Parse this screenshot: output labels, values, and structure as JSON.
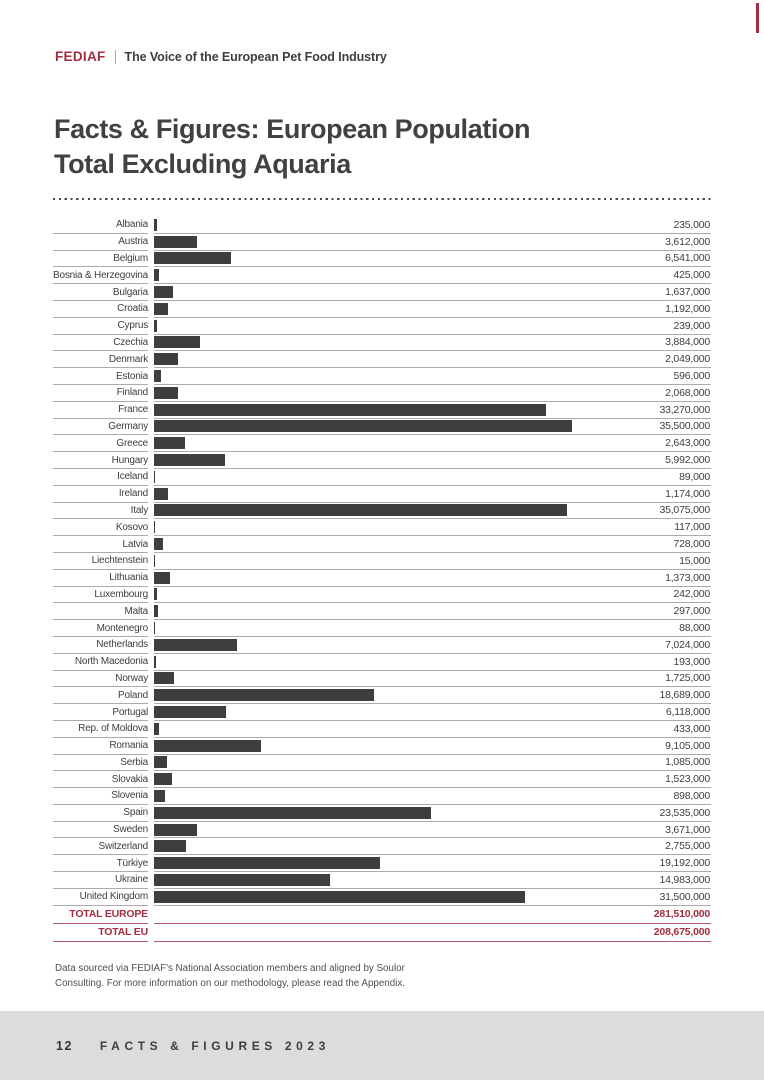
{
  "header": {
    "brand": "FEDIAF",
    "tagline": "The Voice of the European Pet Food Industry"
  },
  "title": {
    "line1": "Facts & Figures: European Population",
    "line2": "Total Excluding Aquaria"
  },
  "chart_data": {
    "type": "bar",
    "orientation": "horizontal",
    "title": "Facts & Figures: European Population Total Excluding Aquaria",
    "max_scale": 35500000,
    "bar_color": "#3E3D40",
    "grid": false,
    "legend": "none",
    "categories": [
      "Albania",
      "Austria",
      "Belgium",
      "Bosnia & Herzegovina",
      "Bulgaria",
      "Croatia",
      "Cyprus",
      "Czechia",
      "Denmark",
      "Estonia",
      "Finland",
      "France",
      "Germany",
      "Greece",
      "Hungary",
      "Iceland",
      "Ireland",
      "Italy",
      "Kosovo",
      "Latvia",
      "Liechtenstein",
      "Lithuania",
      "Luxembourg",
      "Malta",
      "Montenegro",
      "Netherlands",
      "North Macedonia",
      "Norway",
      "Poland",
      "Portugal",
      "Rep. of Moldova",
      "Romania",
      "Serbia",
      "Slovakia",
      "Slovenia",
      "Spain",
      "Sweden",
      "Switzerland",
      "Türkiye",
      "Ukraine",
      "United Kingdom"
    ],
    "values": [
      235000,
      3612000,
      6541000,
      425000,
      1637000,
      1192000,
      239000,
      3884000,
      2049000,
      596000,
      2068000,
      33270000,
      35500000,
      2643000,
      5992000,
      89000,
      1174000,
      35075000,
      117000,
      728000,
      15000,
      1373000,
      242000,
      297000,
      88000,
      7024000,
      193000,
      1725000,
      18689000,
      6118000,
      433000,
      9105000,
      1085000,
      1523000,
      898000,
      23535000,
      3671000,
      2755000,
      19192000,
      14983000,
      31500000
    ],
    "value_labels": [
      "235,000",
      "3,612,000",
      "6,541,000",
      "425,000",
      "1,637,000",
      "1,192,000",
      "239,000",
      "3,884,000",
      "2,049,000",
      "596,000",
      "2,068,000",
      "33,270,000",
      "35,500,000",
      "2,643,000",
      "5,992,000",
      "89,000",
      "1,174,000",
      "35,075,000",
      "117,000",
      "728,000",
      "15,000",
      "1,373,000",
      "242,000",
      "297,000",
      "88,000",
      "7,024,000",
      "193,000",
      "1,725,000",
      "18,689,000",
      "6,118,000",
      "433,000",
      "9,105,000",
      "1,085,000",
      "1,523,000",
      "898,000",
      "23,535,000",
      "3,671,000",
      "2,755,000",
      "19,192,000",
      "14,983,000",
      "31,500,000"
    ],
    "totals": [
      {
        "label": "TOTAL EUROPE",
        "value": 281510000,
        "value_label": "281,510,000"
      },
      {
        "label": "TOTAL EU",
        "value": 208675000,
        "value_label": "208,675,000"
      }
    ]
  },
  "footnote": {
    "line1": "Data sourced via FEDIAF's National Association members and aligned by Soulor",
    "line2": "Consulting. For more information on our methodology, please read the Appendix."
  },
  "footer": {
    "page_number": "12",
    "title": "FACTS & FIGURES 2023"
  },
  "colors": {
    "brand_red": "#A42E41",
    "bar": "#3E3D40",
    "separator": "#ABABAB",
    "footer_background": "#DCDCDC"
  }
}
